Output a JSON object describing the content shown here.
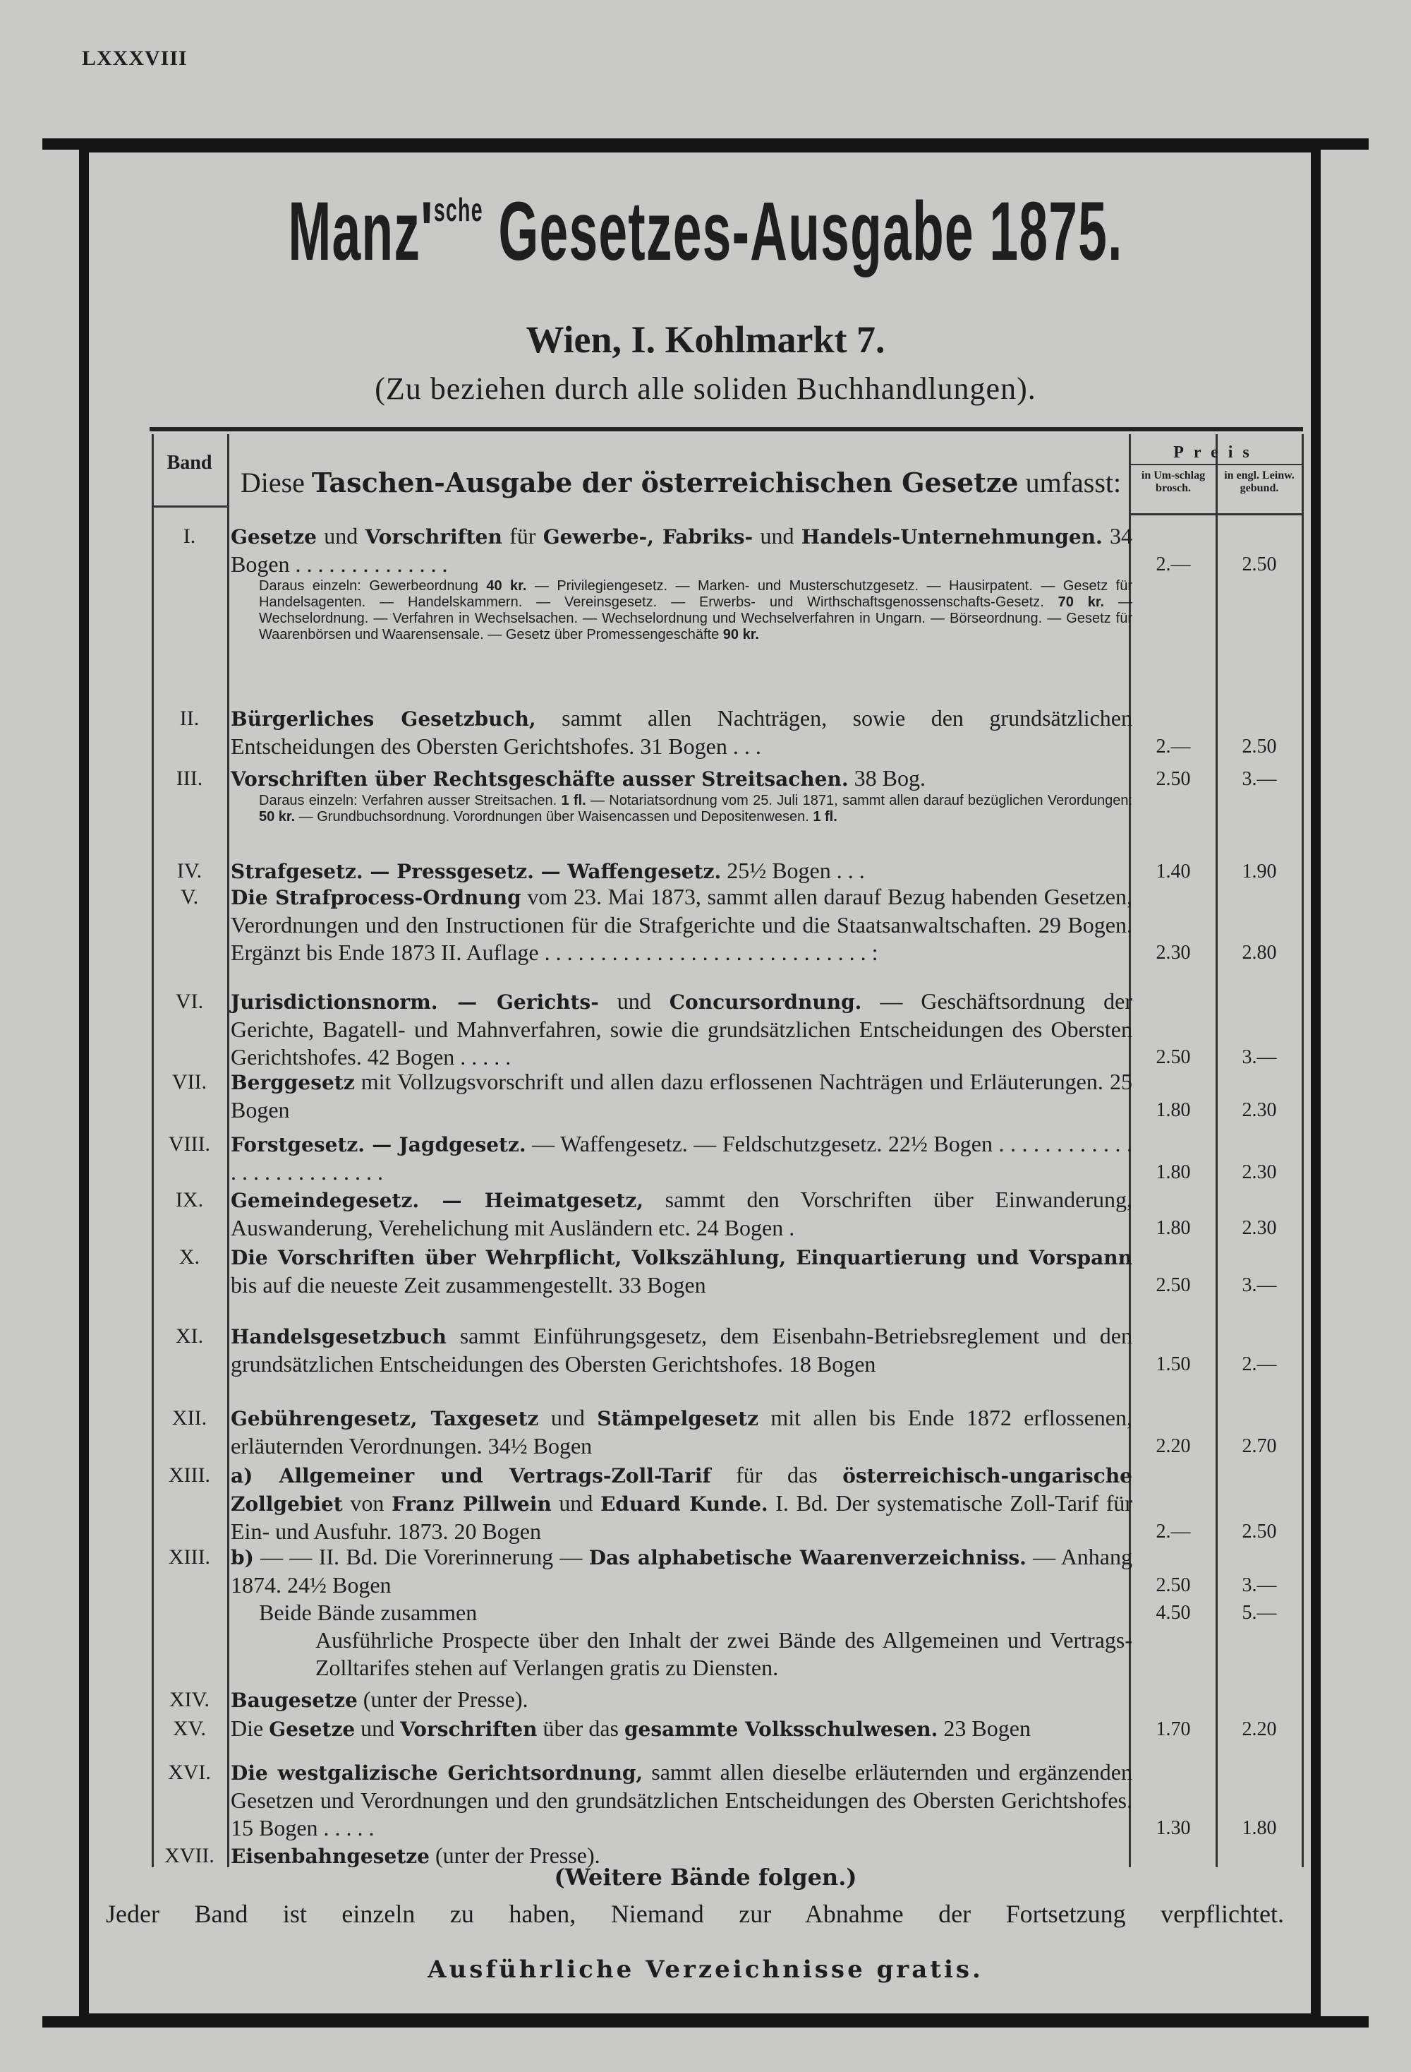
{
  "page_number": "LXXXVIII",
  "header": {
    "title_a": "Manz'",
    "title_sup": "sche",
    "title_b": " Gesetzes-Ausgabe 1875.",
    "address": "Wien, I. Kohlmarkt 7.",
    "subtitle": "(Zu beziehen durch alle soliden Buchhandlungen)."
  },
  "table": {
    "band_header": "Band",
    "desc_header_a": "Diese ",
    "desc_header_b": "Taschen-Ausgabe der österreichischen Gesetze",
    "desc_header_c": " umfasst:",
    "price_header": "Preis",
    "price_col1": "in Um-schlag brosch.",
    "price_col2": "in engl. Leinw. gebund.",
    "items": [
      {
        "band": "I.",
        "text": [
          {
            "b": 1,
            "t": "Gesetze"
          },
          {
            "t": " und "
          },
          {
            "b": 1,
            "t": "Vorschriften"
          },
          {
            "t": " für "
          },
          {
            "b": 1,
            "t": "Gewerbe-, Fabriks-"
          },
          {
            "t": " und "
          },
          {
            "b": 1,
            "t": "Handels-Unternehmungen."
          },
          {
            "t": " 34 Bogen . . . . . . . . . . . . . ."
          }
        ],
        "p1": "2.—",
        "p2": "2.50",
        "note": [
          {
            "t": "Daraus einzeln: Gewerbeordnung "
          },
          {
            "b": 1,
            "t": "40 kr."
          },
          {
            "t": " — Privilegiengesetz. — Marken- und Musterschutzgesetz. — Hausirpatent. — Gesetz für Handelsagenten. — Handelskammern. — Vereinsgesetz. — Erwerbs- und Wirthschaftsgenossenschafts-Gesetz. "
          },
          {
            "b": 1,
            "t": "70 kr."
          },
          {
            "t": " — Wechselordnung. — Verfahren in Wechselsachen. — Wechselordnung und Wechselverfahren in Ungarn. — Börseordnung. — Gesetz für Waarenbörsen und Waarensensale. — Gesetz über Promessengeschäfte "
          },
          {
            "b": 1,
            "t": "90 kr."
          }
        ]
      },
      {
        "band": "II.",
        "text": [
          {
            "b": 1,
            "t": "Bürgerliches Gesetzbuch,"
          },
          {
            "t": " sammt allen Nachträgen, sowie den grundsätzlichen Entscheidungen des Obersten Gerichtshofes. 31 Bogen . . ."
          }
        ],
        "p1": "2.—",
        "p2": "2.50"
      },
      {
        "band": "III.",
        "text": [
          {
            "b": 1,
            "t": "Vorschriften über Rechtsgeschäfte ausser Streitsachen."
          },
          {
            "t": " 38 Bog."
          }
        ],
        "p1": "2.50",
        "p2": "3.—",
        "note": [
          {
            "t": "Daraus einzeln: Verfahren ausser Streitsachen. "
          },
          {
            "b": 1,
            "t": "1 fl."
          },
          {
            "t": " — Notariatsordnung vom 25. Juli 1871, sammt allen darauf bezüglichen Verordungen: "
          },
          {
            "b": 1,
            "t": "50 kr."
          },
          {
            "t": " — Grundbuchsordnung. Vorordnungen über Waisencassen und Depositenwesen. "
          },
          {
            "b": 1,
            "t": "1 fl."
          }
        ]
      },
      {
        "band": "IV.",
        "text": [
          {
            "b": 1,
            "t": "Strafgesetz. — Pressgesetz. — Waffengesetz."
          },
          {
            "t": " 25½ Bogen . . ."
          }
        ],
        "p1": "1.40",
        "p2": "1.90"
      },
      {
        "band": "V.",
        "text": [
          {
            "b": 1,
            "t": "Die Strafprocess-Ordnung"
          },
          {
            "t": " vom 23. Mai 1873, sammt allen darauf Bezug habenden Gesetzen, Verordnungen und den Instructionen für die Strafgerichte und die Staatsanwaltschaften. 29 Bogen. Ergänzt bis Ende 1873 II. Auflage . . . . . . . . . . . . . . . . . . . . . . . . . . . . . :"
          }
        ],
        "p1": "2.30",
        "p2": "2.80"
      },
      {
        "band": "VI.",
        "text": [
          {
            "b": 1,
            "t": "Jurisdictionsnorm. — Gerichts-"
          },
          {
            "t": " und "
          },
          {
            "b": 1,
            "t": "Concursordnung."
          },
          {
            "t": " — Geschäftsordnung der Gerichte, Bagatell- und Mahnverfahren, sowie die grundsätzlichen Entscheidungen des Obersten Gerichtshofes. 42 Bogen . . . . ."
          }
        ],
        "p1": "2.50",
        "p2": "3.—"
      },
      {
        "band": "VII.",
        "text": [
          {
            "b": 1,
            "t": "Berggesetz"
          },
          {
            "t": " mit Vollzugsvorschrift und allen dazu erflossenen Nachträgen und Erläuterungen. 25 Bogen"
          }
        ],
        "p1": "1.80",
        "p2": "2.30"
      },
      {
        "band": "VIII.",
        "text": [
          {
            "b": 1,
            "t": "Forstgesetz. — Jagdgesetz."
          },
          {
            "t": " — Waffengesetz. — Feldschutzgesetz. 22½ Bogen . . . . . . . . . . . . . . . . . . . . . . . . . ."
          }
        ],
        "p1": "1.80",
        "p2": "2.30"
      },
      {
        "band": "IX.",
        "text": [
          {
            "b": 1,
            "t": "Gemeindegesetz. — Heimatgesetz,"
          },
          {
            "t": " sammt den Vorschriften über Einwanderung, Auswanderung, Verehelichung mit Ausländern etc. 24 Bogen ."
          }
        ],
        "p1": "1.80",
        "p2": "2.30"
      },
      {
        "band": "X.",
        "text": [
          {
            "b": 1,
            "t": "Die Vorschriften über Wehrpflicht, Volkszählung, Einquartierung und Vorspann"
          },
          {
            "t": " bis auf die neueste Zeit zusammengestellt. 33 Bogen"
          }
        ],
        "p1": "2.50",
        "p2": "3.—"
      },
      {
        "band": "XI.",
        "text": [
          {
            "b": 1,
            "t": "Handelsgesetzbuch"
          },
          {
            "t": " sammt Einführungsgesetz, dem Eisenbahn-Betriebsreglement und den grundsätzlichen Entscheidungen des Obersten Gerichtshofes. 18 Bogen"
          }
        ],
        "p1": "1.50",
        "p2": "2.—"
      },
      {
        "band": "XII.",
        "text": [
          {
            "b": 1,
            "t": "Gebührengesetz, Taxgesetz"
          },
          {
            "t": " und "
          },
          {
            "b": 1,
            "t": "Stämpelgesetz"
          },
          {
            "t": " mit allen bis Ende 1872 erflossenen, erläuternden Verordnungen. 34½ Bogen"
          }
        ],
        "p1": "2.20",
        "p2": "2.70"
      },
      {
        "band": "XIII.",
        "text": [
          {
            "b": 1,
            "t": "a) Allgemeiner und Vertrags-Zoll-Tarif"
          },
          {
            "t": " für das "
          },
          {
            "b": 1,
            "t": "österreichisch-ungarische Zollgebiet"
          },
          {
            "t": " von "
          },
          {
            "b": 1,
            "t": "Franz Pillwein"
          },
          {
            "t": " und "
          },
          {
            "b": 1,
            "t": "Eduard Kunde."
          },
          {
            "t": " I. Bd. Der systematische Zoll-Tarif für Ein- und Ausfuhr. 1873. 20 Bogen"
          }
        ],
        "p1": "2.—",
        "p2": "2.50"
      },
      {
        "band": "XIII.",
        "text": [
          {
            "b": 1,
            "t": "b)"
          },
          {
            "t": " — — II. Bd. Die Vorerinnerung — "
          },
          {
            "b": 1,
            "t": "Das alphabetische Waarenverzeichniss."
          },
          {
            "t": " — Anhang 1874. 24½ Bogen"
          }
        ],
        "p1": "2.50",
        "p2": "3.—",
        "extra": {
          "text": "Beide Bände zusammen",
          "p1": "4.50",
          "p2": "5.—"
        },
        "para": "Ausführliche Prospecte über den Inhalt der zwei Bände des Allgemeinen und Vertrags-Zolltarifes stehen auf Verlangen gratis zu Diensten."
      },
      {
        "band": "XIV.",
        "text": [
          {
            "b": 1,
            "t": "Baugesetze"
          },
          {
            "t": " (unter der Presse)."
          }
        ]
      },
      {
        "band": "XV.",
        "text": [
          {
            "t": "Die "
          },
          {
            "b": 1,
            "t": "Gesetze"
          },
          {
            "t": " und "
          },
          {
            "b": 1,
            "t": "Vorschriften"
          },
          {
            "t": " über das "
          },
          {
            "b": 1,
            "t": "gesammte Volksschulwesen."
          },
          {
            "t": " 23 Bogen"
          }
        ],
        "p1": "1.70",
        "p2": "2.20"
      },
      {
        "band": "XVI.",
        "text": [
          {
            "b": 1,
            "t": "Die westgalizische Gerichtsordnung,"
          },
          {
            "t": " sammt allen dieselbe erläuternden und ergänzenden Gesetzen und Verordnungen und den grundsätzlichen Entscheidungen des Obersten Gerichtshofes. 15 Bogen . . . . ."
          }
        ],
        "p1": "1.30",
        "p2": "1.80"
      },
      {
        "band": "XVII.",
        "text": [
          {
            "b": 1,
            "t": "Eisenbahngesetze"
          },
          {
            "t": " (unter der Presse)."
          }
        ]
      }
    ]
  },
  "footer": {
    "more": "(Weitere Bände folgen.)",
    "note": "Jeder Band ist einzeln zu haben, Niemand zur Abnahme der Fortsetzung verpflichtet.",
    "catalog": "Ausführliche Verzeichnisse gratis."
  }
}
